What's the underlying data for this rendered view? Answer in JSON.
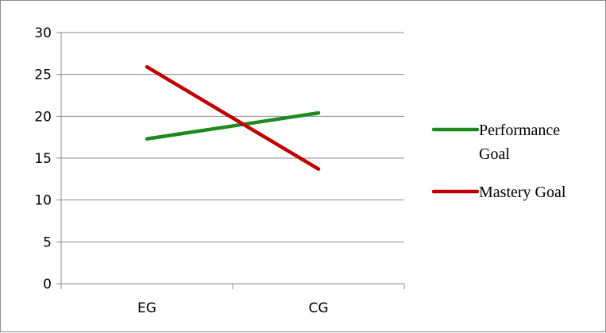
{
  "chart_data": {
    "type": "line",
    "title": "",
    "xlabel": "",
    "ylabel": "",
    "categories": [
      "EG",
      "CG"
    ],
    "ylim": [
      0,
      30
    ],
    "yticks": [
      0,
      5,
      10,
      15,
      20,
      25,
      30
    ],
    "grid": true,
    "legend_position": "right",
    "series": [
      {
        "name": "Performance Goal",
        "legend_lines": [
          "Performance",
          "Goal"
        ],
        "values": [
          17.3,
          20.4
        ],
        "color": "#1e8a1e"
      },
      {
        "name": "Mastery Goal",
        "legend_lines": [
          "Mastery Goal"
        ],
        "values": [
          25.9,
          13.7
        ],
        "color": "#c00000"
      }
    ]
  }
}
